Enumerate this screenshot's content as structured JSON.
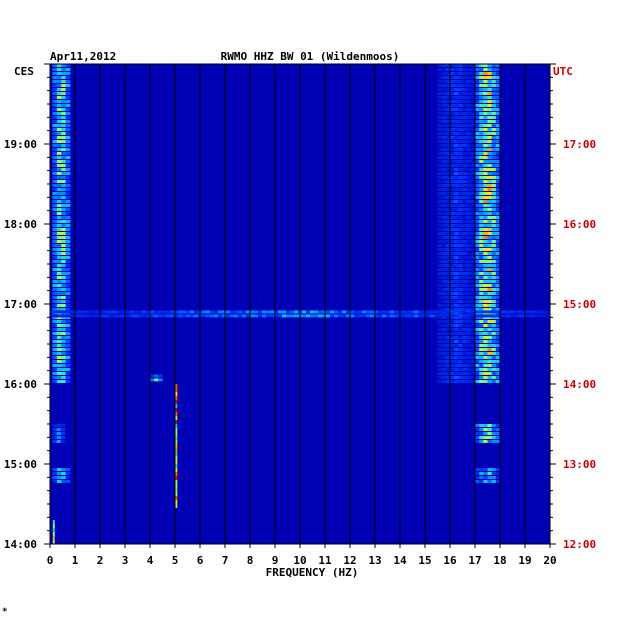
{
  "header": {
    "date": "Apr11,2012",
    "station": "RWMO HHZ BW 01 (Wildenmoos)",
    "left_zone": "CES",
    "right_zone": "UTC"
  },
  "footer": {
    "mark": "*"
  },
  "colors": {
    "background": "#0000b4",
    "grid": "#000000",
    "utc_text": "#cc0000",
    "text": "#000000"
  },
  "chart_data": {
    "type": "heatmap",
    "title": "RWMO HHZ BW 01 (Wildenmoos)",
    "xlabel": "FREQUENCY (HZ)",
    "ylabel": "",
    "xlim": [
      0,
      20
    ],
    "x_ticks": [
      "0",
      "1",
      "2",
      "3",
      "4",
      "5",
      "6",
      "7",
      "8",
      "9",
      "10",
      "11",
      "12",
      "13",
      "14",
      "15",
      "16",
      "17",
      "18",
      "19",
      "20"
    ],
    "y_left_ticks": [
      {
        "value": 19,
        "label": "19:00"
      },
      {
        "value": 18,
        "label": "18:00"
      },
      {
        "value": 17,
        "label": "17:00"
      },
      {
        "value": 16,
        "label": "16:00"
      },
      {
        "value": 15,
        "label": "15:00"
      },
      {
        "value": 14,
        "label": "14:00"
      }
    ],
    "y_right_ticks": [
      {
        "value": 19,
        "label": "17:00"
      },
      {
        "value": 18,
        "label": "16:00"
      },
      {
        "value": 17,
        "label": "15:00"
      },
      {
        "value": 16,
        "label": "14:00"
      },
      {
        "value": 15,
        "label": "13:00"
      },
      {
        "value": 14,
        "label": "12:00"
      }
    ],
    "ylim": [
      14,
      20
    ],
    "bands": [
      {
        "f0": 0.1,
        "f1": 0.8,
        "t0": 16.0,
        "t1": 20.0,
        "level": 0.75
      },
      {
        "f0": 17.0,
        "f1": 18.0,
        "t0": 16.0,
        "t1": 20.0,
        "level": 0.85
      },
      {
        "f0": 17.0,
        "f1": 18.0,
        "t0": 15.25,
        "t1": 15.5,
        "level": 0.7
      },
      {
        "f0": 17.0,
        "f1": 18.0,
        "t0": 14.75,
        "t1": 14.95,
        "level": 0.6
      },
      {
        "f0": 0.1,
        "f1": 0.8,
        "t0": 14.75,
        "t1": 14.95,
        "level": 0.55
      },
      {
        "f0": 0.1,
        "f1": 0.6,
        "t0": 15.25,
        "t1": 15.5,
        "level": 0.4
      },
      {
        "f0": 0.0,
        "f1": 20.0,
        "t0": 16.85,
        "t1": 16.92,
        "level": 0.45
      },
      {
        "f0": 4.0,
        "f1": 4.5,
        "t0": 16.05,
        "t1": 16.12,
        "level": 0.55
      },
      {
        "f0": 15.5,
        "f1": 17.0,
        "t0": 16.0,
        "t1": 20.0,
        "level": 0.3
      }
    ],
    "lines": [
      {
        "f": 5.05,
        "t0": 14.45,
        "t1": 16.0,
        "level": 1.0
      },
      {
        "f": 0.15,
        "t0": 14.0,
        "t1": 14.3,
        "level": 0.9
      }
    ]
  }
}
